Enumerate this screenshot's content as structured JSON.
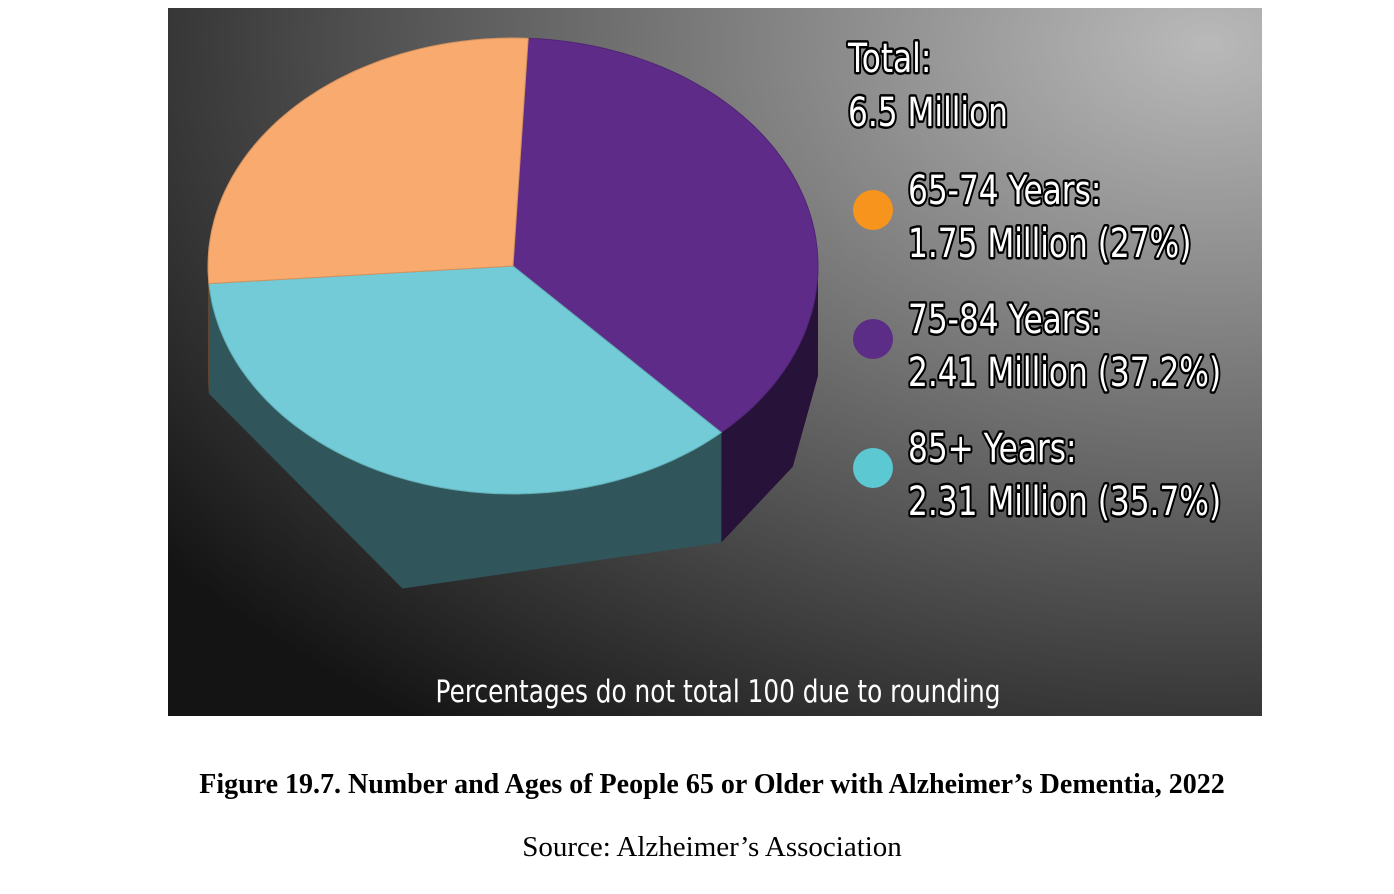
{
  "chart_data": {
    "type": "pie",
    "annotations": [
      "Total:",
      "6.5 Million",
      "Percentages do not total 100 due to rounding"
    ],
    "categories": [
      "65-74 Years:",
      "75-84 Years:",
      "85+ Years:"
    ],
    "values": [
      27,
      37.2,
      35.7
    ],
    "value_labels": [
      "1.75 Million (27%)",
      "2.41 Million (37.2%)",
      "2.31 Million (35.7%)"
    ],
    "colors": [
      "#f8aa6f",
      "#5e2c88",
      "#72cbd6"
    ],
    "legend_colors": [
      "#f7941d",
      "#5b2d87",
      "#5cc8d2"
    ],
    "title": "Figure 19.7. Number and Ages of People 65 or Older with Alzheimer’s Dementia, 2022",
    "subtitle": "Source: Alzheimer’s Association"
  }
}
